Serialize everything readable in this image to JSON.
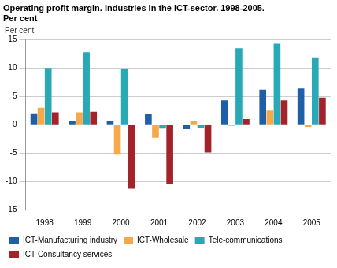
{
  "chart_data": {
    "type": "bar",
    "title": "Operating profit margin. Industries in the ICT-sector. 1998-2005.",
    "subtitle": "Per cent",
    "y_label": "Per cent",
    "categories": [
      "1998",
      "1999",
      "2000",
      "2001",
      "2002",
      "2003",
      "2004",
      "2005"
    ],
    "series": [
      {
        "name": "ICT-Manufacturing industry",
        "color": "#1f5fa6",
        "values": [
          2.0,
          0.7,
          0.6,
          1.9,
          -0.8,
          4.3,
          6.2,
          6.4
        ]
      },
      {
        "name": "ICT-Wholesale",
        "color": "#f5a94a",
        "values": [
          3.0,
          2.2,
          -5.3,
          -2.3,
          0.6,
          -0.2,
          2.5,
          -0.4
        ]
      },
      {
        "name": "Tele-communications",
        "color": "#29a9b5",
        "values": [
          10.0,
          12.8,
          9.8,
          -0.7,
          -0.6,
          13.5,
          14.3,
          11.9
        ]
      },
      {
        "name": "ICT-Consultancy services",
        "color": "#a3232a",
        "values": [
          2.2,
          2.3,
          -11.3,
          -10.4,
          -4.9,
          1.0,
          4.3,
          4.8
        ]
      }
    ],
    "ylim": [
      -15,
      15
    ],
    "yticks": [
      -15,
      -10,
      -5,
      0,
      5,
      10,
      15
    ],
    "grid": true,
    "legend": "bottom"
  }
}
